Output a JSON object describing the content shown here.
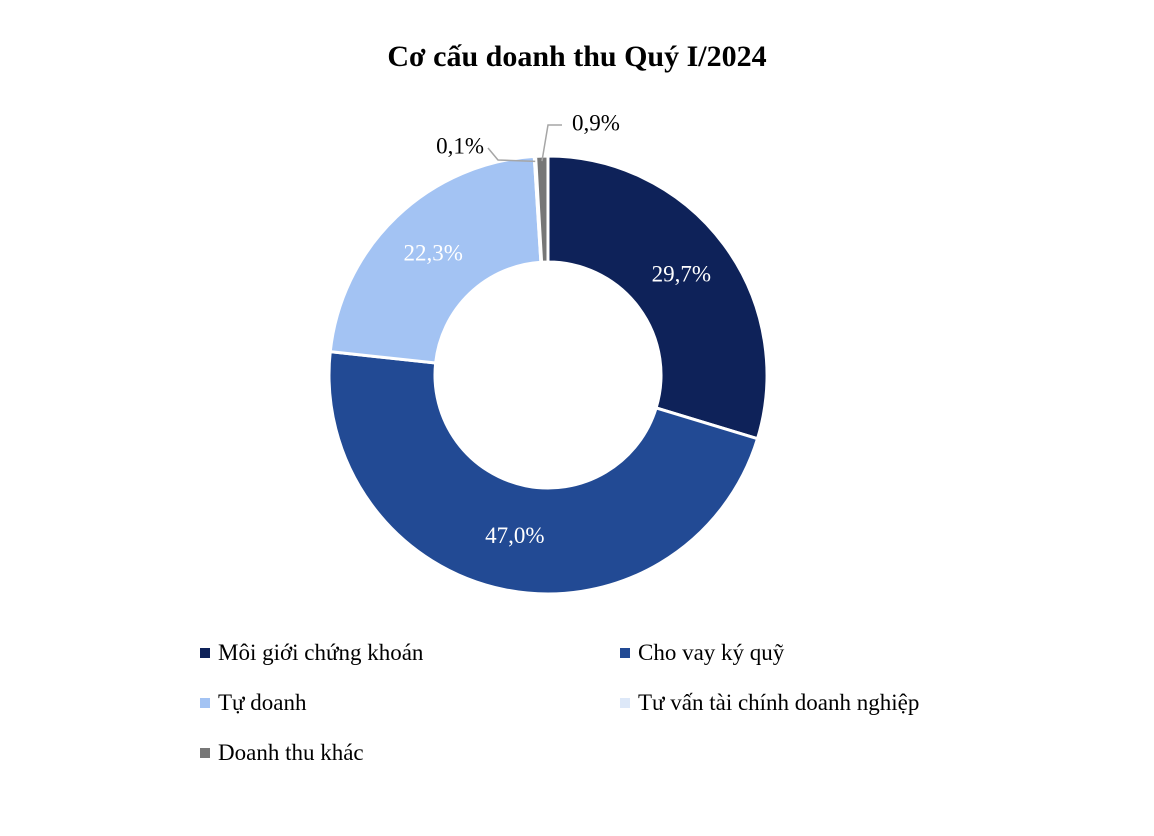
{
  "chart_data": {
    "type": "donut",
    "title": "Cơ cấu doanh thu Quý I/2024",
    "slices": [
      {
        "name": "Môi giới chứng khoán",
        "value": 29.7,
        "label": "29,7%",
        "color": "#0e2259"
      },
      {
        "name": "Cho vay ký quỹ",
        "value": 47.0,
        "label": "47,0%",
        "color": "#224a94"
      },
      {
        "name": "Tự doanh",
        "value": 22.3,
        "label": "22,3%",
        "color": "#a3c3f3"
      },
      {
        "name": "Tư vấn tài chính doanh nghiệp",
        "value": 0.1,
        "label": "0,1%",
        "color": "#dde8f8"
      },
      {
        "name": "Doanh thu khác",
        "value": 0.9,
        "label": "0,9%",
        "color": "#777777"
      }
    ],
    "start": "12 o'clock",
    "direction": "clockwise",
    "legend_position": "bottom"
  }
}
